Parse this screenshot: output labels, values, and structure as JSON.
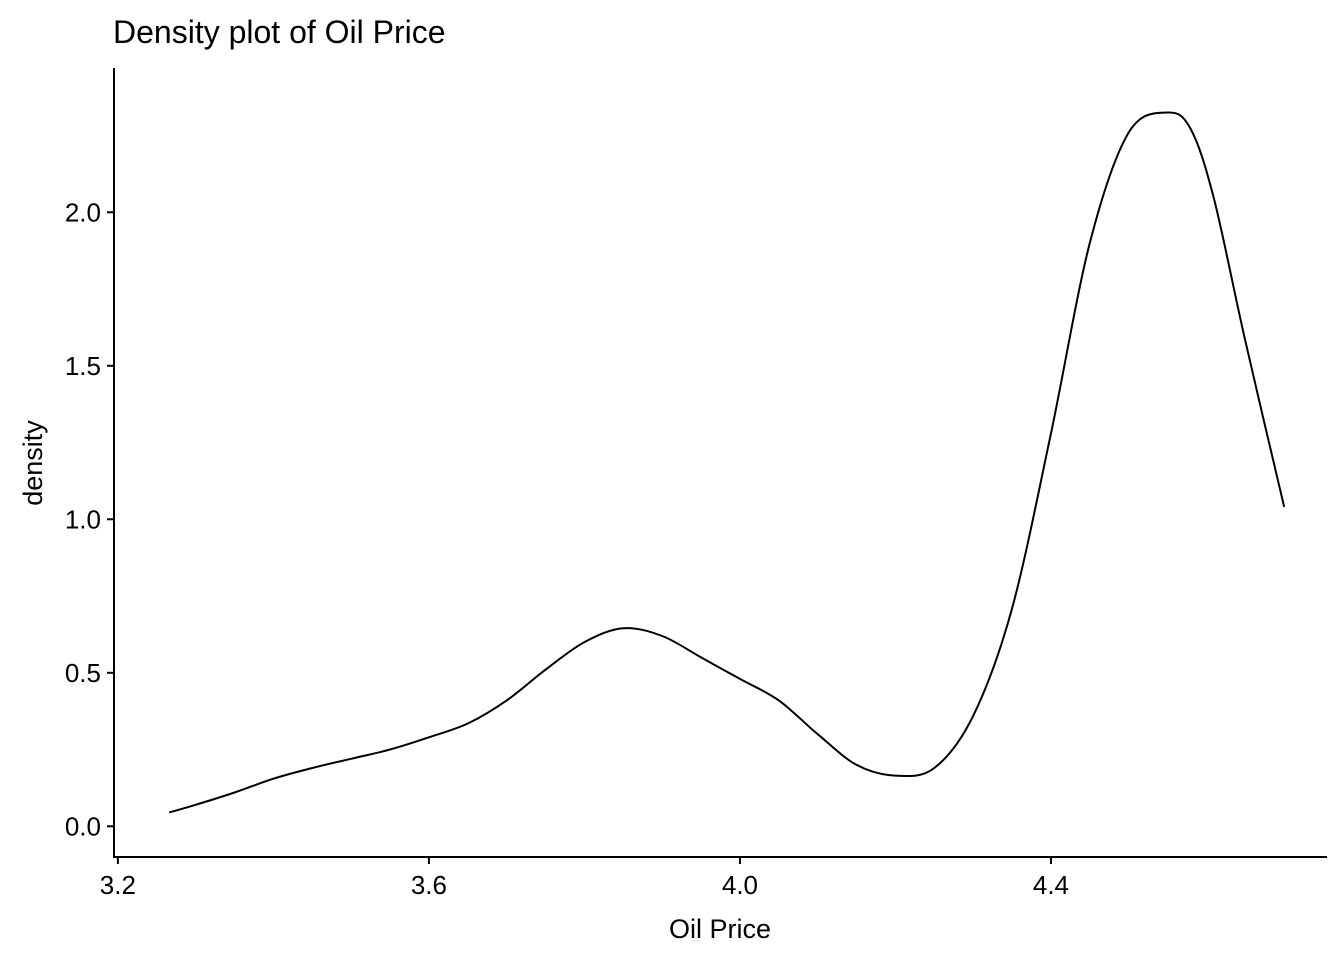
{
  "chart_data": {
    "type": "line",
    "title": "Density plot of Oil Price",
    "xlabel": "Oil Price",
    "ylabel": "density",
    "xlim": [
      3.195,
      4.755
    ],
    "ylim": [
      -0.1,
      2.47
    ],
    "x_ticks": [
      {
        "value": 3.2,
        "label": "3.2"
      },
      {
        "value": 3.6,
        "label": "3.6"
      },
      {
        "value": 4.0,
        "label": "4.0"
      },
      {
        "value": 4.4,
        "label": "4.4"
      }
    ],
    "y_ticks": [
      {
        "value": 0.0,
        "label": "0.0"
      },
      {
        "value": 0.5,
        "label": "0.5"
      },
      {
        "value": 1.0,
        "label": "1.0"
      },
      {
        "value": 1.5,
        "label": "1.5"
      },
      {
        "value": 2.0,
        "label": "2.0"
      }
    ],
    "grid": false,
    "line_color": "#000000",
    "series": [
      {
        "x": [
          3.266,
          3.3,
          3.35,
          3.4,
          3.45,
          3.5,
          3.55,
          3.6,
          3.65,
          3.7,
          3.75,
          3.8,
          3.85,
          3.9,
          3.95,
          4.0,
          4.05,
          4.1,
          4.15,
          4.2,
          4.25,
          4.3,
          4.35,
          4.4,
          4.45,
          4.5,
          4.55,
          4.58,
          4.61,
          4.65,
          4.7
        ],
        "y": [
          0.045,
          0.07,
          0.11,
          0.155,
          0.19,
          0.22,
          0.25,
          0.29,
          0.335,
          0.41,
          0.51,
          0.6,
          0.645,
          0.62,
          0.55,
          0.48,
          0.41,
          0.3,
          0.2,
          0.165,
          0.19,
          0.36,
          0.71,
          1.28,
          1.9,
          2.26,
          2.325,
          2.27,
          2.04,
          1.58,
          1.04
        ]
      }
    ]
  }
}
